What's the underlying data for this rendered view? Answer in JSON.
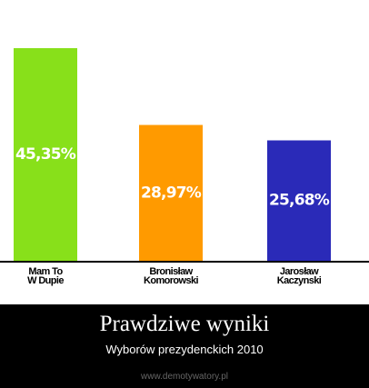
{
  "chart_data": {
    "type": "bar",
    "title": "Prawdziwe wyniki",
    "subtitle": "Wyborów prezydenckich 2010",
    "source": "www.demotywatory.pl",
    "categories": [
      "Mam To\nW Dupie",
      "Bronisław\nKomorowski",
      "Jarosław\nKaczynski"
    ],
    "values": [
      45.35,
      28.97,
      25.68
    ],
    "value_labels": [
      "45,35%",
      "28,97%",
      "25,68%"
    ],
    "colors": [
      "#88e01a",
      "#ff9a00",
      "#2a2ab8"
    ]
  }
}
